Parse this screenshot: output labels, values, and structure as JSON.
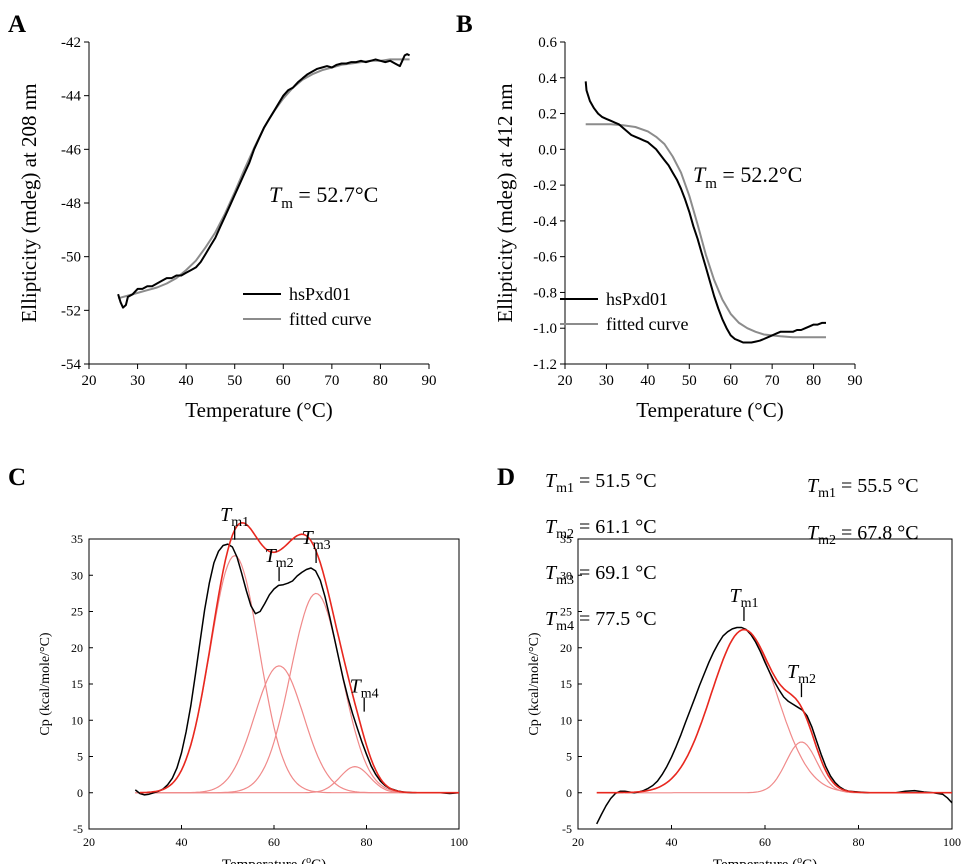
{
  "colors": {
    "black": "#000000",
    "gray": "#8c8c8c",
    "red": "#e8281f",
    "red_light": "#f08a8a"
  },
  "chart_data": [
    {
      "panel_label": "A",
      "type": "line",
      "xlabel": "Temperature (°C)",
      "ylabel": "Ellipticity (mdeg) at 208 nm",
      "xlim": [
        20,
        90
      ],
      "ylim": [
        -54,
        -42
      ],
      "xticks": [
        20,
        30,
        40,
        50,
        60,
        70,
        80,
        90
      ],
      "yticks": [
        -54,
        -52,
        -50,
        -48,
        -46,
        -44,
        -42
      ],
      "legend_position": "bottom-right",
      "annotation": {
        "symbol": "T",
        "sub": "m",
        "rest": " = 52.7°C"
      },
      "series": [
        {
          "name": "hsPxd01",
          "style": "data",
          "x": [
            26,
            26.5,
            27,
            27.6,
            28,
            29,
            30,
            31,
            32,
            33,
            34,
            35,
            36,
            37,
            38,
            39,
            40,
            41,
            42,
            43,
            44,
            45,
            46,
            47,
            48,
            49,
            50,
            51,
            52,
            53,
            54,
            55,
            56,
            57,
            58,
            59,
            60,
            61,
            62,
            63,
            64,
            65,
            66,
            67,
            68,
            69,
            70,
            71,
            72,
            73,
            74,
            75,
            76,
            77,
            78,
            79,
            80,
            81,
            82,
            83,
            84,
            84.5,
            85,
            85.5,
            86
          ],
          "y": [
            -51.4,
            -51.7,
            -51.9,
            -51.8,
            -51.5,
            -51.4,
            -51.2,
            -51.2,
            -51.1,
            -51.1,
            -51,
            -50.9,
            -50.8,
            -50.8,
            -50.7,
            -50.7,
            -50.6,
            -50.5,
            -50.4,
            -50.2,
            -49.9,
            -49.6,
            -49.3,
            -48.9,
            -48.5,
            -48.1,
            -47.7,
            -47.3,
            -46.9,
            -46.5,
            -46.0,
            -45.6,
            -45.2,
            -44.9,
            -44.6,
            -44.3,
            -44.0,
            -43.8,
            -43.7,
            -43.5,
            -43.35,
            -43.2,
            -43.1,
            -43.0,
            -42.95,
            -42.9,
            -42.95,
            -42.85,
            -42.8,
            -42.8,
            -42.75,
            -42.75,
            -42.7,
            -42.75,
            -42.7,
            -42.65,
            -42.7,
            -42.75,
            -42.7,
            -42.8,
            -42.9,
            -42.7,
            -42.5,
            -42.45,
            -42.5
          ]
        },
        {
          "name": "fitted curve",
          "style": "fit",
          "x": [
            26,
            28,
            30,
            32,
            34,
            36,
            38,
            40,
            42,
            44,
            46,
            48,
            50,
            52,
            54,
            56,
            58,
            60,
            62,
            64,
            66,
            68,
            70,
            72,
            74,
            76,
            78,
            80,
            82,
            84,
            86
          ],
          "y": [
            -51.55,
            -51.45,
            -51.35,
            -51.25,
            -51.15,
            -51,
            -50.8,
            -50.5,
            -50.15,
            -49.65,
            -49.1,
            -48.4,
            -47.6,
            -46.75,
            -45.95,
            -45.2,
            -44.6,
            -44.1,
            -43.7,
            -43.4,
            -43.2,
            -43.05,
            -42.95,
            -42.85,
            -42.8,
            -42.75,
            -42.7,
            -42.7,
            -42.65,
            -42.65,
            -42.65
          ]
        }
      ]
    },
    {
      "panel_label": "B",
      "type": "line",
      "xlabel": "Temperature (°C)",
      "ylabel": "Ellipticity (mdeg) at 412 nm",
      "xlim": [
        20,
        90
      ],
      "ylim": [
        -1.2,
        0.6
      ],
      "xticks": [
        20,
        30,
        40,
        50,
        60,
        70,
        80,
        90
      ],
      "yticks": [
        -1.2,
        -1.0,
        -0.8,
        -0.6,
        -0.4,
        -0.2,
        0.0,
        0.2,
        0.4,
        0.6
      ],
      "ytick_labels": [
        "-1.2",
        "-1.0",
        "-0.8",
        "-0.6",
        "-0.4",
        "-0.2",
        "0.0",
        "0.2",
        "0.4",
        "0.6"
      ],
      "legend_position": "bottom-right",
      "annotation": {
        "symbol": "T",
        "sub": "m",
        "rest": " = 52.2°C"
      },
      "series": [
        {
          "name": "hsPxd01",
          "style": "data",
          "x": [
            25,
            25.2,
            25.6,
            26,
            27,
            28,
            29,
            30,
            31,
            32,
            33,
            34,
            35,
            36,
            37,
            38,
            39,
            40,
            41,
            42,
            43,
            44,
            45,
            46,
            47,
            48,
            49,
            50,
            51,
            52,
            53,
            54,
            55,
            56,
            57,
            58,
            59,
            60,
            61,
            62,
            63,
            64,
            65,
            66,
            67,
            68,
            69,
            70,
            71,
            72,
            73,
            74,
            75,
            76,
            77,
            78,
            79,
            80,
            81,
            82,
            83
          ],
          "y": [
            0.38,
            0.33,
            0.3,
            0.27,
            0.23,
            0.2,
            0.18,
            0.17,
            0.16,
            0.15,
            0.14,
            0.12,
            0.1,
            0.08,
            0.07,
            0.06,
            0.05,
            0.04,
            0.02,
            0,
            -0.03,
            -0.06,
            -0.09,
            -0.13,
            -0.17,
            -0.22,
            -0.28,
            -0.35,
            -0.43,
            -0.5,
            -0.58,
            -0.66,
            -0.74,
            -0.82,
            -0.89,
            -0.95,
            -1.0,
            -1.04,
            -1.06,
            -1.07,
            -1.08,
            -1.08,
            -1.08,
            -1.075,
            -1.07,
            -1.06,
            -1.05,
            -1.04,
            -1.03,
            -1.02,
            -1.02,
            -1.02,
            -1.02,
            -1.01,
            -1.01,
            -1.0,
            -0.99,
            -0.98,
            -0.98,
            -0.97,
            -0.97
          ]
        },
        {
          "name": "fitted curve",
          "style": "fit",
          "x": [
            25,
            28,
            31,
            34,
            37,
            40,
            42,
            44,
            46,
            48,
            50,
            52,
            54,
            56,
            58,
            60,
            62,
            64,
            66,
            68,
            70,
            72,
            75,
            78,
            81,
            83
          ],
          "y": [
            0.14,
            0.14,
            0.14,
            0.135,
            0.125,
            0.1,
            0.07,
            0.03,
            -0.04,
            -0.13,
            -0.26,
            -0.42,
            -0.59,
            -0.73,
            -0.84,
            -0.92,
            -0.97,
            -1.0,
            -1.02,
            -1.035,
            -1.04,
            -1.045,
            -1.05,
            -1.05,
            -1.05,
            -1.05
          ]
        }
      ]
    },
    {
      "panel_label": "C",
      "type": "line",
      "xlabel_main": "Temperature (",
      "xlabel_sup": "o",
      "xlabel_end": "C)",
      "ylabel": "Cp (kcal/mole/°C)",
      "xlim": [
        20,
        100
      ],
      "ylim": [
        -5,
        35
      ],
      "xticks": [
        20,
        40,
        60,
        80,
        100
      ],
      "yticks": [
        -5,
        0,
        5,
        10,
        15,
        20,
        25,
        30,
        35
      ],
      "tm_values": [
        {
          "sub": "m1",
          "rest": " = 51.5 °C"
        },
        {
          "sub": "m2",
          "rest": " = 61.1 °C"
        },
        {
          "sub": "m3",
          "rest": " = 69.1 °C"
        },
        {
          "sub": "m4",
          "rest": " = 77.5 °C"
        }
      ],
      "peak_markers": [
        {
          "sub": "m1",
          "x": 51.5,
          "y": 34.2
        },
        {
          "sub": "m2",
          "x": 61.1,
          "y": 28.5
        },
        {
          "sub": "m3",
          "x": 69.1,
          "y": 31
        },
        {
          "sub": "m4",
          "x": 79.5,
          "y": 10.5
        }
      ],
      "components": [
        {
          "center": 51.5,
          "height": 32.7,
          "width": 5.3
        },
        {
          "center": 61.1,
          "height": 17.5,
          "width": 5.3
        },
        {
          "center": 69.1,
          "height": 27.5,
          "width": 5.5
        },
        {
          "center": 77.5,
          "height": 3.6,
          "width": 3.2
        }
      ],
      "experimental": {
        "x": [
          30,
          31,
          32,
          33,
          34,
          35,
          36,
          37,
          38,
          39,
          40,
          41,
          42,
          43,
          44,
          45,
          46,
          47,
          48,
          49,
          50,
          51,
          52,
          53,
          54,
          55,
          56,
          57,
          58,
          59,
          60,
          61,
          62,
          63,
          64,
          65,
          66,
          67,
          68,
          69,
          70,
          71,
          72,
          73,
          74,
          75,
          76,
          77,
          78,
          79,
          80,
          81,
          82,
          83,
          84,
          85,
          86,
          87,
          88,
          90,
          92,
          94,
          96,
          98,
          100
        ],
        "y": [
          0.4,
          -0.1,
          -0.3,
          -0.2,
          0,
          0.2,
          0.5,
          1.1,
          2.0,
          3.4,
          5.5,
          8.4,
          12.0,
          16.3,
          20.8,
          25.2,
          28.9,
          31.7,
          33.3,
          34.1,
          34.3,
          33.9,
          32.5,
          30.3,
          27.9,
          25.8,
          24.7,
          25.0,
          26.1,
          27.3,
          28.1,
          28.6,
          28.7,
          28.9,
          29.2,
          29.9,
          30.4,
          30.8,
          31.0,
          30.6,
          29.3,
          27.1,
          24.4,
          21.5,
          18.5,
          15.6,
          13.1,
          10.9,
          8.9,
          7.0,
          5.3,
          3.7,
          2.5,
          1.6,
          1.0,
          0.6,
          0.4,
          0.2,
          0.1,
          0,
          0,
          0,
          0,
          -0.1,
          0
        ]
      }
    },
    {
      "panel_label": "D",
      "type": "line",
      "xlabel_main": "Temperature (",
      "xlabel_sup": "o",
      "xlabel_end": "C)",
      "ylabel": "Cp (kcal/mole/°C)",
      "xlim": [
        20,
        100
      ],
      "ylim": [
        -5,
        35
      ],
      "xticks": [
        20,
        40,
        60,
        80,
        100
      ],
      "yticks": [
        -5,
        0,
        5,
        10,
        15,
        20,
        25,
        30,
        35
      ],
      "tm_values": [
        {
          "sub": "m1",
          "rest": " = 55.5 °C"
        },
        {
          "sub": "m2",
          "rest": " = 67.8 °C"
        }
      ],
      "peak_markers": [
        {
          "sub": "m1",
          "x": 55.5,
          "y": 23
        },
        {
          "sub": "m2",
          "x": 67.8,
          "y": 12.5
        }
      ],
      "components": [
        {
          "center": 55.5,
          "height": 22.5,
          "width": 7.0
        },
        {
          "center": 67.8,
          "height": 7.0,
          "width": 3.3
        }
      ],
      "experimental": {
        "x": [
          24,
          25,
          26,
          27,
          28,
          29,
          30,
          31,
          32,
          33,
          34,
          35,
          36,
          37,
          38,
          39,
          40,
          41,
          42,
          43,
          44,
          45,
          46,
          47,
          48,
          49,
          50,
          51,
          52,
          53,
          54,
          55,
          56,
          57,
          58,
          59,
          60,
          61,
          62,
          63,
          64,
          65,
          66,
          67,
          68,
          69,
          70,
          71,
          72,
          73,
          74,
          75,
          76,
          77,
          78,
          80,
          82,
          84,
          86,
          88,
          90,
          92,
          94,
          96,
          98,
          99,
          100
        ],
        "y": [
          -4.3,
          -3.0,
          -1.8,
          -0.8,
          -0.1,
          0.2,
          0.2,
          0.1,
          0,
          0.1,
          0.3,
          0.6,
          1.0,
          1.6,
          2.5,
          3.6,
          4.9,
          6.4,
          8.0,
          9.7,
          11.4,
          13.1,
          14.8,
          16.4,
          18.0,
          19.4,
          20.6,
          21.6,
          22.2,
          22.6,
          22.8,
          22.8,
          22.5,
          21.8,
          20.8,
          19.5,
          18.0,
          16.6,
          15.3,
          14.2,
          13.2,
          12.6,
          12.2,
          11.8,
          11.4,
          10.6,
          9.1,
          7.2,
          5.3,
          3.6,
          2.3,
          1.4,
          0.8,
          0.4,
          0.2,
          0.1,
          0,
          0,
          0,
          0,
          0.2,
          0.3,
          0.1,
          0,
          -0.2,
          -0.7,
          -1.4
        ]
      }
    }
  ]
}
